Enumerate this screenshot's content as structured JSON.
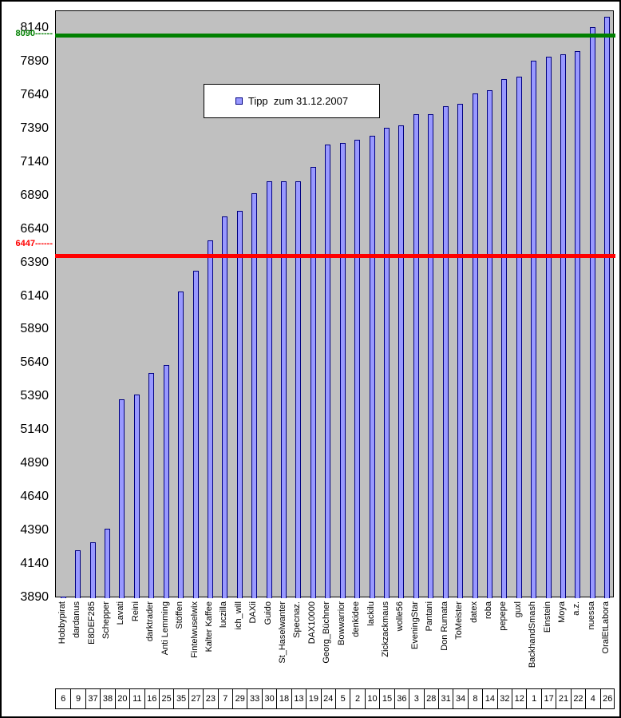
{
  "legend": {
    "label": "Tipp  zum 31.12.2007"
  },
  "chart_data": {
    "type": "bar",
    "title": "",
    "legend_label": "Tipp  zum 31.12.2007",
    "legend_position": "top-center",
    "grid": false,
    "plot_background": "#C0C0C0",
    "bar_fill": "#9999FF",
    "bar_border": "#000080",
    "ylim": [
      3890,
      8270
    ],
    "yticks": [
      8140,
      7890,
      7640,
      7390,
      7140,
      6890,
      6640,
      6390,
      6140,
      5890,
      5640,
      5390,
      5140,
      4890,
      4640,
      4390,
      4140,
      3890
    ],
    "reference_lines": [
      {
        "value": 8090,
        "label": "8090------",
        "color": "#008000"
      },
      {
        "value": 6447,
        "label": "6447------",
        "color": "#FF0000"
      }
    ],
    "categories": [
      "Hobbypirat",
      "dardanus",
      "E8DEF285",
      "Schepper",
      "Lavati",
      "Reini",
      "darktrader",
      "Anti Lemming",
      "Stöffen",
      "Fintelwuselwix",
      "Kalter Kaffee",
      "luczilla",
      "ich_will",
      "DAXii",
      "Guido",
      "St_Haselwanter",
      "Specnaz.",
      "DAX10000",
      "Georg_Büchner",
      "Bowwarrior",
      "denkidee",
      "lackilu",
      "Zickzackmaus",
      "wolle56",
      "EveningStar",
      "Pantani",
      "Don Rumata",
      "ToMeister",
      "datex",
      "roba",
      "pepepe",
      "guxl",
      "BackhandSmash",
      "Einstein",
      "Moya",
      "a.z.",
      "nuessa",
      "OralEtLabora"
    ],
    "values": [
      3900,
      4250,
      4310,
      4410,
      5375,
      5410,
      5570,
      5630,
      6180,
      6335,
      6560,
      6740,
      6780,
      6910,
      7000,
      7000,
      7000,
      7110,
      7275,
      7290,
      7310,
      7340,
      7400,
      7420,
      7500,
      7500,
      7560,
      7580,
      7660,
      7680,
      7765,
      7780,
      7900,
      7930,
      7950,
      7975,
      8150,
      8230
    ],
    "rank_row": [
      6,
      9,
      37,
      38,
      20,
      11,
      16,
      25,
      35,
      27,
      23,
      7,
      29,
      33,
      30,
      18,
      13,
      19,
      24,
      5,
      2,
      10,
      15,
      36,
      3,
      28,
      31,
      34,
      8,
      14,
      32,
      12,
      1,
      17,
      21,
      22,
      4,
      26
    ]
  }
}
